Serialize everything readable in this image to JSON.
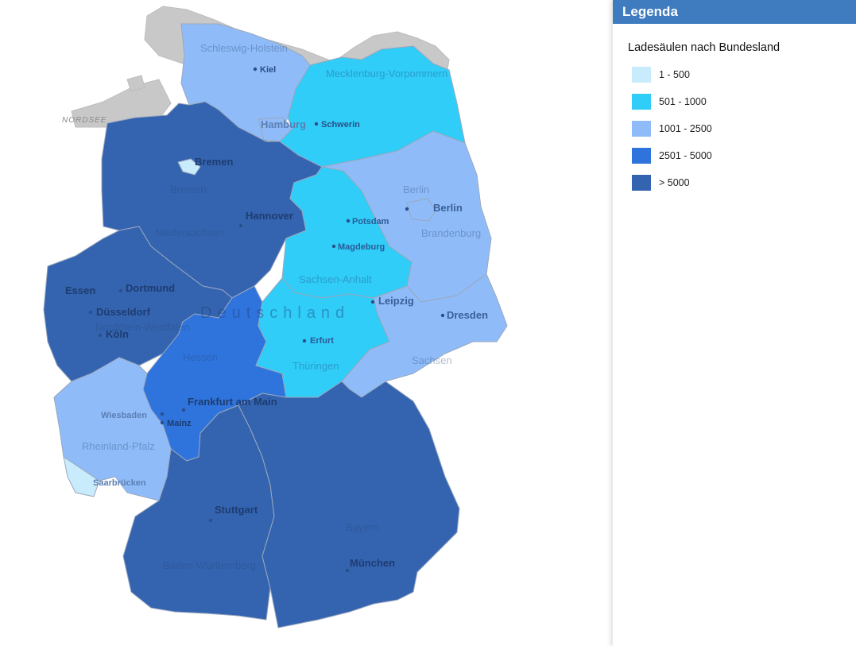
{
  "map": {
    "country_label": "Deutschland",
    "sea_label": "NORDSEE",
    "regions": [
      {
        "name": "Schleswig-Holstein",
        "class": "1001 - 2500",
        "color": "#8fbcf8"
      },
      {
        "name": "Hamburg",
        "class": "1001 - 2500",
        "color": "#8fbcf8"
      },
      {
        "name": "Mecklenburg-Vorpommern",
        "class": "501 - 1000",
        "color": "#2fcdf8"
      },
      {
        "name": "Niedersachsen",
        "class": "> 5000",
        "color": "#3464b0"
      },
      {
        "name": "Bremen",
        "class": "1 - 500",
        "color": "#c9ecfc"
      },
      {
        "name": "Berlin",
        "class": "1001 - 2500",
        "color": "#8fbcf8"
      },
      {
        "name": "Brandenburg",
        "class": "1001 - 2500",
        "color": "#8fbcf8"
      },
      {
        "name": "Sachsen-Anhalt",
        "class": "501 - 1000",
        "color": "#2fcdf8"
      },
      {
        "name": "Nordrhein-Westfalen",
        "class": "> 5000",
        "color": "#3464b0"
      },
      {
        "name": "Hessen",
        "class": "2501 - 5000",
        "color": "#2f74dc"
      },
      {
        "name": "Thüringen",
        "class": "501 - 1000",
        "color": "#2fcdf8"
      },
      {
        "name": "Sachsen",
        "class": "1001 - 2500",
        "color": "#8fbcf8"
      },
      {
        "name": "Rheinland-Pfalz",
        "class": "1001 - 2500",
        "color": "#8fbcf8"
      },
      {
        "name": "Saarland",
        "class": "1 - 500",
        "color": "#c9ecfc"
      },
      {
        "name": "Baden-Württemberg",
        "class": "> 5000",
        "color": "#3464b0"
      },
      {
        "name": "Bayern",
        "class": "> 5000",
        "color": "#3464b0"
      }
    ],
    "region_labels": {
      "schleswig": "Schleswig-Holstein",
      "mecklenburg": "Mecklenburg-Vorpommern",
      "bremen_state": "Bremen",
      "niedersachsen": "Niedersachsen",
      "berlin_state": "Berlin",
      "brandenburg": "Brandenburg",
      "sachsen_anhalt": "Sachsen-Anhalt",
      "nrw": "Nordrhein-Westfalen",
      "hessen": "Hessen",
      "thueringen": "Thüringen",
      "sachsen": "Sachsen",
      "rheinland": "Rheinland-Pfalz",
      "baden": "Baden-Württemberg",
      "bayern": "Bayern"
    },
    "cities": {
      "kiel": "Kiel",
      "hamburg": "Hamburg",
      "schwerin": "Schwerin",
      "bremen": "Bremen",
      "hannover": "Hannover",
      "berlin": "Berlin",
      "potsdam": "Potsdam",
      "magdeburg": "Magdeburg",
      "essen": "Essen",
      "dortmund": "Dortmund",
      "duesseldorf": "Düsseldorf",
      "koeln": "Köln",
      "leipzig": "Leipzig",
      "dresden": "Dresden",
      "erfurt": "Erfurt",
      "frankfurt": "Frankfurt am Main",
      "wiesbaden": "Wiesbaden",
      "mainz": "Mainz",
      "saarbruecken": "Saarbrücken",
      "stuttgart": "Stuttgart",
      "muenchen": "München"
    }
  },
  "legend": {
    "header": "Legenda",
    "title": "Ladesäulen nach Bundesland",
    "items": [
      {
        "label": "1 - 500",
        "color": "#c9ecfc"
      },
      {
        "label": "501 - 1000",
        "color": "#2fcdf8"
      },
      {
        "label": "1001 - 2500",
        "color": "#8fbcf8"
      },
      {
        "label": "2501 - 5000",
        "color": "#2f74dc"
      },
      {
        "label": "> 5000",
        "color": "#3464b0"
      }
    ]
  }
}
